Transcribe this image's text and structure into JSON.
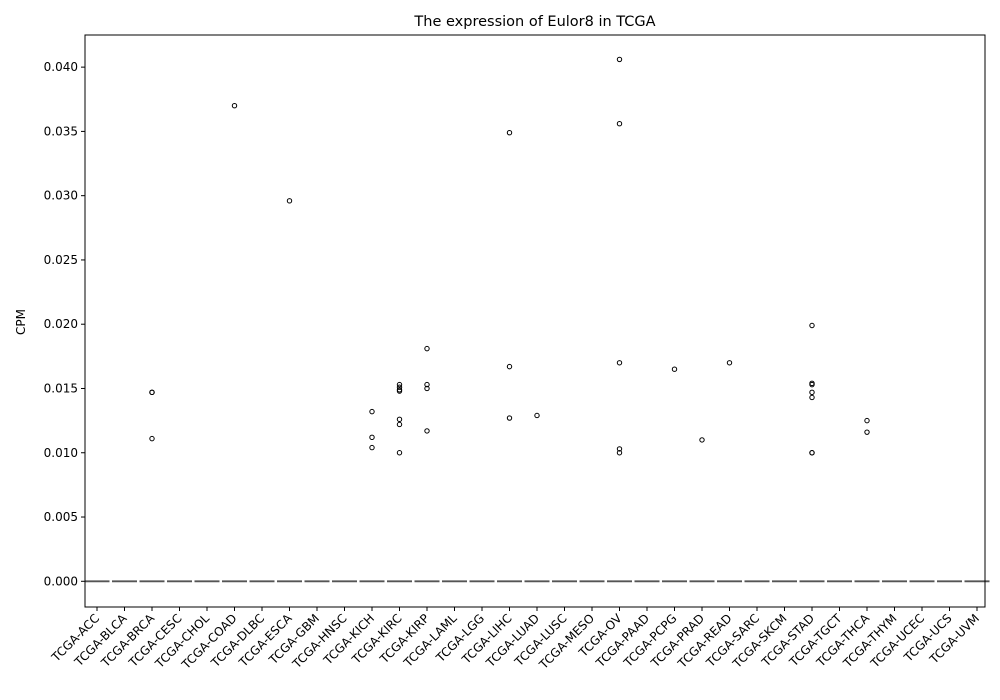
{
  "chart_data": {
    "type": "box",
    "title": "The expression of Eulor8 in TCGA",
    "xlabel": "",
    "ylabel": "CPM",
    "ylim": [
      -0.002,
      0.0425
    ],
    "yticks": [
      0.0,
      0.005,
      0.01,
      0.015,
      0.02,
      0.025,
      0.03,
      0.035,
      0.04
    ],
    "ytick_labels": [
      "0.000",
      "0.005",
      "0.010",
      "0.015",
      "0.020",
      "0.025",
      "0.030",
      "0.035",
      "0.040"
    ],
    "grid": false,
    "median_color": "#555555",
    "categories": [
      "TCGA-ACC",
      "TCGA-BLCA",
      "TCGA-BRCA",
      "TCGA-CESC",
      "TCGA-CHOL",
      "TCGA-COAD",
      "TCGA-DLBC",
      "TCGA-ESCA",
      "TCGA-GBM",
      "TCGA-HNSC",
      "TCGA-KICH",
      "TCGA-KIRC",
      "TCGA-KIRP",
      "TCGA-LAML",
      "TCGA-LGG",
      "TCGA-LIHC",
      "TCGA-LUAD",
      "TCGA-LUSC",
      "TCGA-MESO",
      "TCGA-OV",
      "TCGA-PAAD",
      "TCGA-PCPG",
      "TCGA-PRAD",
      "TCGA-READ",
      "TCGA-SARC",
      "TCGA-SKCM",
      "TCGA-STAD",
      "TCGA-TGCT",
      "TCGA-THCA",
      "TCGA-THYM",
      "TCGA-UCEC",
      "TCGA-UCS",
      "TCGA-UVM"
    ],
    "medians": [
      0,
      0,
      0,
      0,
      0,
      0,
      0,
      0,
      0,
      0,
      0,
      0,
      0,
      0,
      0,
      0,
      0,
      0,
      0,
      0,
      0,
      0,
      0,
      0,
      0,
      0,
      0,
      0,
      0,
      0,
      0,
      0,
      0
    ],
    "outliers": [
      [],
      [],
      [
        0.0147,
        0.0147,
        0.0111
      ],
      [],
      [],
      [
        0.037
      ],
      [],
      [
        0.0296
      ],
      [],
      [],
      [
        0.0132,
        0.0112,
        0.0104
      ],
      [
        0.0153,
        0.0151,
        0.0149,
        0.0148,
        0.0126,
        0.0122,
        0.01
      ],
      [
        0.0181,
        0.0153,
        0.015,
        0.0117
      ],
      [],
      [],
      [
        0.0349,
        0.0167,
        0.0127
      ],
      [
        0.0129
      ],
      [],
      [],
      [
        0.0406,
        0.0356,
        0.017,
        0.0103,
        0.01
      ],
      [],
      [
        0.0165
      ],
      [
        0.011
      ],
      [
        0.017
      ],
      [],
      [],
      [
        0.0199,
        0.0154,
        0.0153,
        0.0147,
        0.0143,
        0.01,
        0.01
      ],
      [],
      [
        0.0125,
        0.0116
      ],
      [],
      [],
      [],
      []
    ]
  }
}
